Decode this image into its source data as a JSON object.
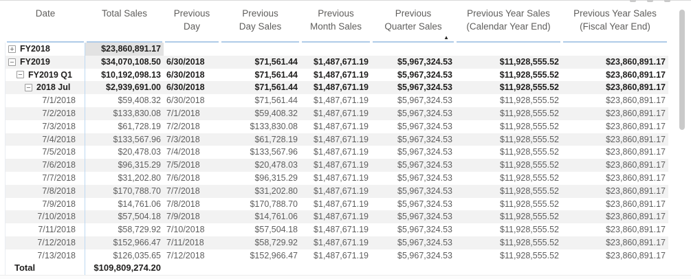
{
  "table": {
    "columns": [
      {
        "line1": "Date",
        "line2": ""
      },
      {
        "line1": "Total Sales",
        "line2": ""
      },
      {
        "line1": "Previous",
        "line2": "Day"
      },
      {
        "line1": "Previous",
        "line2": "Day Sales"
      },
      {
        "line1": "Previous",
        "line2": "Month Sales"
      },
      {
        "line1": "Previous",
        "line2": "Quarter Sales",
        "sort": "asc"
      },
      {
        "line1": "Previous Year Sales",
        "line2": "(Calendar Year End)"
      },
      {
        "line1": "Previous Year Sales",
        "line2": "(Fiscal Year End)"
      }
    ],
    "sort_icon": "▲",
    "rows": [
      {
        "label": "FY2018",
        "level": 0,
        "expander": "plus",
        "bold": true,
        "highlight_total": true,
        "total_sales": "$23,860,891.17",
        "prev_day": "",
        "prev_day_sales": "",
        "prev_month_sales": "",
        "prev_quarter_sales": "",
        "prev_year_cal": "",
        "prev_year_fiscal": ""
      },
      {
        "label": "FY2019",
        "level": 0,
        "expander": "minus",
        "bold": true,
        "total_sales": "$34,070,108.50",
        "prev_day": "6/30/2018",
        "prev_day_sales": "$71,561.44",
        "prev_month_sales": "$1,487,671.19",
        "prev_quarter_sales": "$5,967,324.53",
        "prev_year_cal": "$11,928,555.52",
        "prev_year_fiscal": "$23,860,891.17"
      },
      {
        "label": "FY2019 Q1",
        "level": 1,
        "expander": "minus",
        "bold": true,
        "total_sales": "$10,192,098.13",
        "prev_day": "6/30/2018",
        "prev_day_sales": "$71,561.44",
        "prev_month_sales": "$1,487,671.19",
        "prev_quarter_sales": "$5,967,324.53",
        "prev_year_cal": "$11,928,555.52",
        "prev_year_fiscal": "$23,860,891.17"
      },
      {
        "label": "2018 Jul",
        "level": 2,
        "expander": "minus",
        "bold": true,
        "total_sales": "$2,939,691.00",
        "prev_day": "6/30/2018",
        "prev_day_sales": "$71,561.44",
        "prev_month_sales": "$1,487,671.19",
        "prev_quarter_sales": "$5,967,324.53",
        "prev_year_cal": "$11,928,555.52",
        "prev_year_fiscal": "$23,860,891.17"
      },
      {
        "label": "7/1/2018",
        "level": 3,
        "expander": null,
        "bold": false,
        "total_sales": "$59,408.32",
        "prev_day": "6/30/2018",
        "prev_day_sales": "$71,561.44",
        "prev_month_sales": "$1,487,671.19",
        "prev_quarter_sales": "$5,967,324.53",
        "prev_year_cal": "$11,928,555.52",
        "prev_year_fiscal": "$23,860,891.17"
      },
      {
        "label": "7/2/2018",
        "level": 3,
        "expander": null,
        "bold": false,
        "total_sales": "$133,830.08",
        "prev_day": "7/1/2018",
        "prev_day_sales": "$59,408.32",
        "prev_month_sales": "$1,487,671.19",
        "prev_quarter_sales": "$5,967,324.53",
        "prev_year_cal": "$11,928,555.52",
        "prev_year_fiscal": "$23,860,891.17"
      },
      {
        "label": "7/3/2018",
        "level": 3,
        "expander": null,
        "bold": false,
        "total_sales": "$61,728.19",
        "prev_day": "7/2/2018",
        "prev_day_sales": "$133,830.08",
        "prev_month_sales": "$1,487,671.19",
        "prev_quarter_sales": "$5,967,324.53",
        "prev_year_cal": "$11,928,555.52",
        "prev_year_fiscal": "$23,860,891.17"
      },
      {
        "label": "7/4/2018",
        "level": 3,
        "expander": null,
        "bold": false,
        "total_sales": "$133,567.96",
        "prev_day": "7/3/2018",
        "prev_day_sales": "$61,728.19",
        "prev_month_sales": "$1,487,671.19",
        "prev_quarter_sales": "$5,967,324.53",
        "prev_year_cal": "$11,928,555.52",
        "prev_year_fiscal": "$23,860,891.17"
      },
      {
        "label": "7/5/2018",
        "level": 3,
        "expander": null,
        "bold": false,
        "total_sales": "$20,478.03",
        "prev_day": "7/4/2018",
        "prev_day_sales": "$133,567.96",
        "prev_month_sales": "$1,487,671.19",
        "prev_quarter_sales": "$5,967,324.53",
        "prev_year_cal": "$11,928,555.52",
        "prev_year_fiscal": "$23,860,891.17"
      },
      {
        "label": "7/6/2018",
        "level": 3,
        "expander": null,
        "bold": false,
        "total_sales": "$96,315.29",
        "prev_day": "7/5/2018",
        "prev_day_sales": "$20,478.03",
        "prev_month_sales": "$1,487,671.19",
        "prev_quarter_sales": "$5,967,324.53",
        "prev_year_cal": "$11,928,555.52",
        "prev_year_fiscal": "$23,860,891.17"
      },
      {
        "label": "7/7/2018",
        "level": 3,
        "expander": null,
        "bold": false,
        "total_sales": "$31,202.80",
        "prev_day": "7/6/2018",
        "prev_day_sales": "$96,315.29",
        "prev_month_sales": "$1,487,671.19",
        "prev_quarter_sales": "$5,967,324.53",
        "prev_year_cal": "$11,928,555.52",
        "prev_year_fiscal": "$23,860,891.17"
      },
      {
        "label": "7/8/2018",
        "level": 3,
        "expander": null,
        "bold": false,
        "total_sales": "$170,788.70",
        "prev_day": "7/7/2018",
        "prev_day_sales": "$31,202.80",
        "prev_month_sales": "$1,487,671.19",
        "prev_quarter_sales": "$5,967,324.53",
        "prev_year_cal": "$11,928,555.52",
        "prev_year_fiscal": "$23,860,891.17"
      },
      {
        "label": "7/9/2018",
        "level": 3,
        "expander": null,
        "bold": false,
        "total_sales": "$14,761.06",
        "prev_day": "7/8/2018",
        "prev_day_sales": "$170,788.70",
        "prev_month_sales": "$1,487,671.19",
        "prev_quarter_sales": "$5,967,324.53",
        "prev_year_cal": "$11,928,555.52",
        "prev_year_fiscal": "$23,860,891.17"
      },
      {
        "label": "7/10/2018",
        "level": 3,
        "expander": null,
        "bold": false,
        "total_sales": "$57,504.18",
        "prev_day": "7/9/2018",
        "prev_day_sales": "$14,761.06",
        "prev_month_sales": "$1,487,671.19",
        "prev_quarter_sales": "$5,967,324.53",
        "prev_year_cal": "$11,928,555.52",
        "prev_year_fiscal": "$23,860,891.17"
      },
      {
        "label": "7/11/2018",
        "level": 3,
        "expander": null,
        "bold": false,
        "total_sales": "$58,729.92",
        "prev_day": "7/10/2018",
        "prev_day_sales": "$57,504.18",
        "prev_month_sales": "$1,487,671.19",
        "prev_quarter_sales": "$5,967,324.53",
        "prev_year_cal": "$11,928,555.52",
        "prev_year_fiscal": "$23,860,891.17"
      },
      {
        "label": "7/12/2018",
        "level": 3,
        "expander": null,
        "bold": false,
        "total_sales": "$152,966.47",
        "prev_day": "7/11/2018",
        "prev_day_sales": "$58,729.92",
        "prev_month_sales": "$1,487,671.19",
        "prev_quarter_sales": "$5,967,324.53",
        "prev_year_cal": "$11,928,555.52",
        "prev_year_fiscal": "$23,860,891.17"
      },
      {
        "label": "7/13/2018",
        "level": 3,
        "expander": null,
        "bold": false,
        "total_sales": "$126,035.65",
        "prev_day": "7/12/2018",
        "prev_day_sales": "$152,966.47",
        "prev_month_sales": "$1,487,671.19",
        "prev_quarter_sales": "$5,967,324.53",
        "prev_year_cal": "$11,928,555.52",
        "prev_year_fiscal": "$23,860,891.17"
      }
    ],
    "total_row": {
      "label": "Total",
      "total_sales": "$109,809,274.20"
    }
  },
  "icons": {
    "plus": "+",
    "minus": "−"
  },
  "colors": {
    "header_underline": "#aecbe8",
    "row_stripe": "#f2f2f2",
    "highlight_cell": "#e2e2e2",
    "text_bold": "#1f1e1d",
    "text_regular": "#5e5e5e",
    "scrollbar_thumb": "#c9c9c9"
  }
}
